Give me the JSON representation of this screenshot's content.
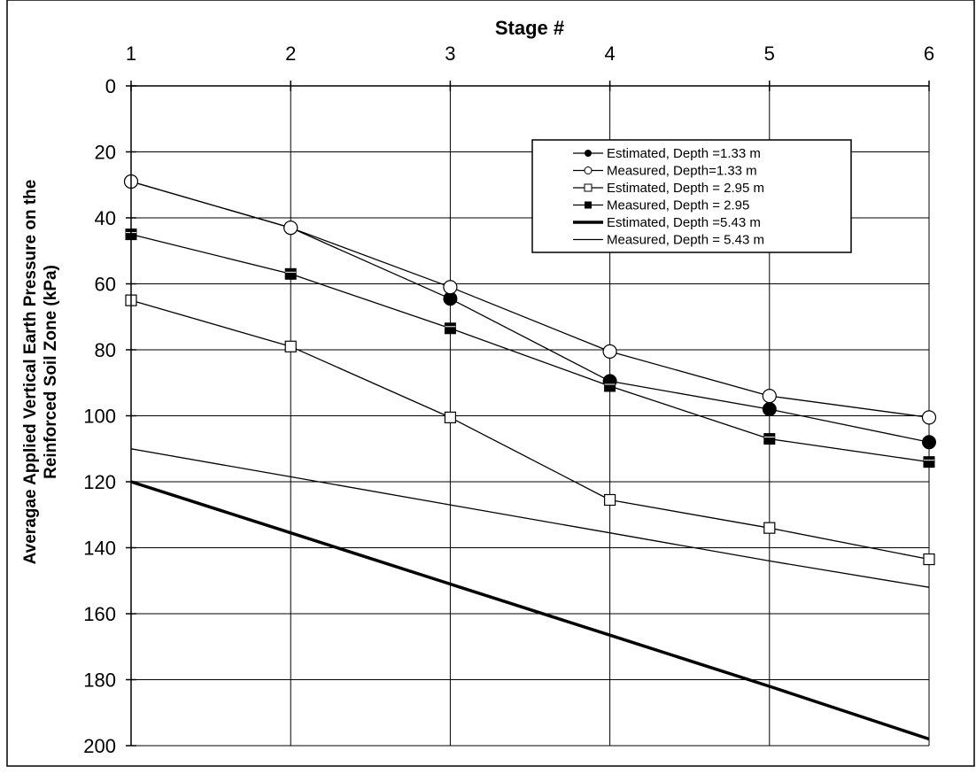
{
  "chart_data": {
    "type": "line",
    "title": "",
    "xlabel": "Stage #",
    "ylabel_line1": "Averagae Applied Vertical Earth Pressure on the",
    "ylabel_line2": "Reinforced Soil Zone (kPa)",
    "x_axis_position": "top",
    "y_axis_inverted": true,
    "xlim": [
      1,
      6
    ],
    "ylim": [
      0,
      200
    ],
    "x_ticks": [
      "1",
      "2",
      "3",
      "4",
      "5",
      "6"
    ],
    "y_ticks": [
      "0",
      "20",
      "40",
      "60",
      "80",
      "100",
      "120",
      "140",
      "160",
      "180",
      "200"
    ],
    "x": [
      1,
      2,
      3,
      4,
      5,
      6
    ],
    "grid": true,
    "legend_position": "top-right",
    "series": [
      {
        "name": "Estimated, Depth =1.33 m",
        "values": [
          29,
          43,
          64.5,
          89.5,
          98,
          108
        ],
        "marker": "filled-circle",
        "line": "thin"
      },
      {
        "name": "Measured, Depth=1.33 m",
        "values": [
          29,
          43,
          61,
          80.5,
          94,
          100.5
        ],
        "marker": "open-circle",
        "line": "thin"
      },
      {
        "name": "Estimated, Depth = 2.95 m",
        "values": [
          65,
          79,
          100.5,
          125.5,
          134,
          143.5
        ],
        "marker": "open-square",
        "line": "thin"
      },
      {
        "name": "Measured, Depth = 2.95",
        "values": [
          45,
          57,
          73.5,
          91,
          107,
          114
        ],
        "marker": "filled-square",
        "line": "thin"
      },
      {
        "name": "Estimated, Depth =5.43 m",
        "values": [
          120,
          135.5,
          151,
          166.5,
          182,
          198
        ],
        "marker": "none",
        "line": "thick"
      },
      {
        "name": "Measured, Depth = 5.43 m",
        "values": [
          110,
          118.5,
          127,
          135.5,
          144,
          152
        ],
        "marker": "none",
        "line": "thin"
      }
    ]
  }
}
